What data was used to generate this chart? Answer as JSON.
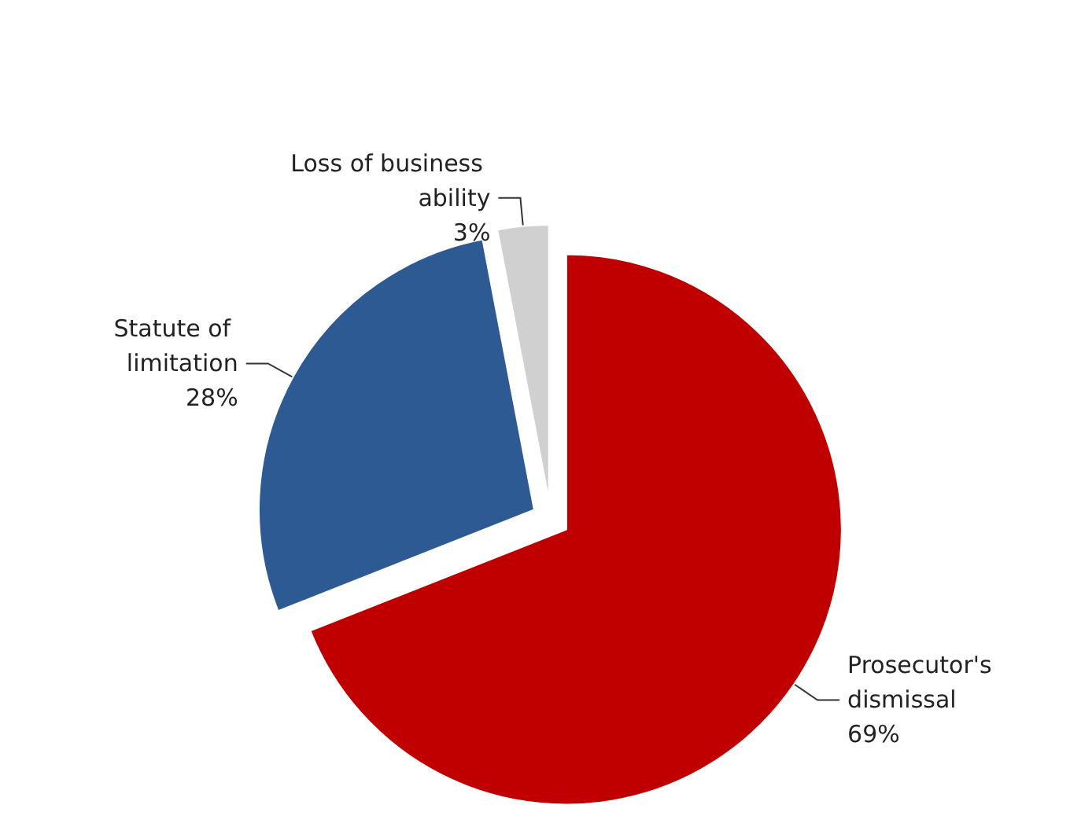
{
  "chart_data": {
    "type": "pie",
    "categories": [
      "Prosecutor's dismissal",
      "Statute of limitation",
      "Loss of business ability"
    ],
    "values": [
      69,
      28,
      3
    ],
    "value_labels": [
      "69%",
      "28%",
      "3%"
    ],
    "colors": [
      "#c00000",
      "#2e5a94",
      "#d0d0d0"
    ],
    "legend": false
  }
}
